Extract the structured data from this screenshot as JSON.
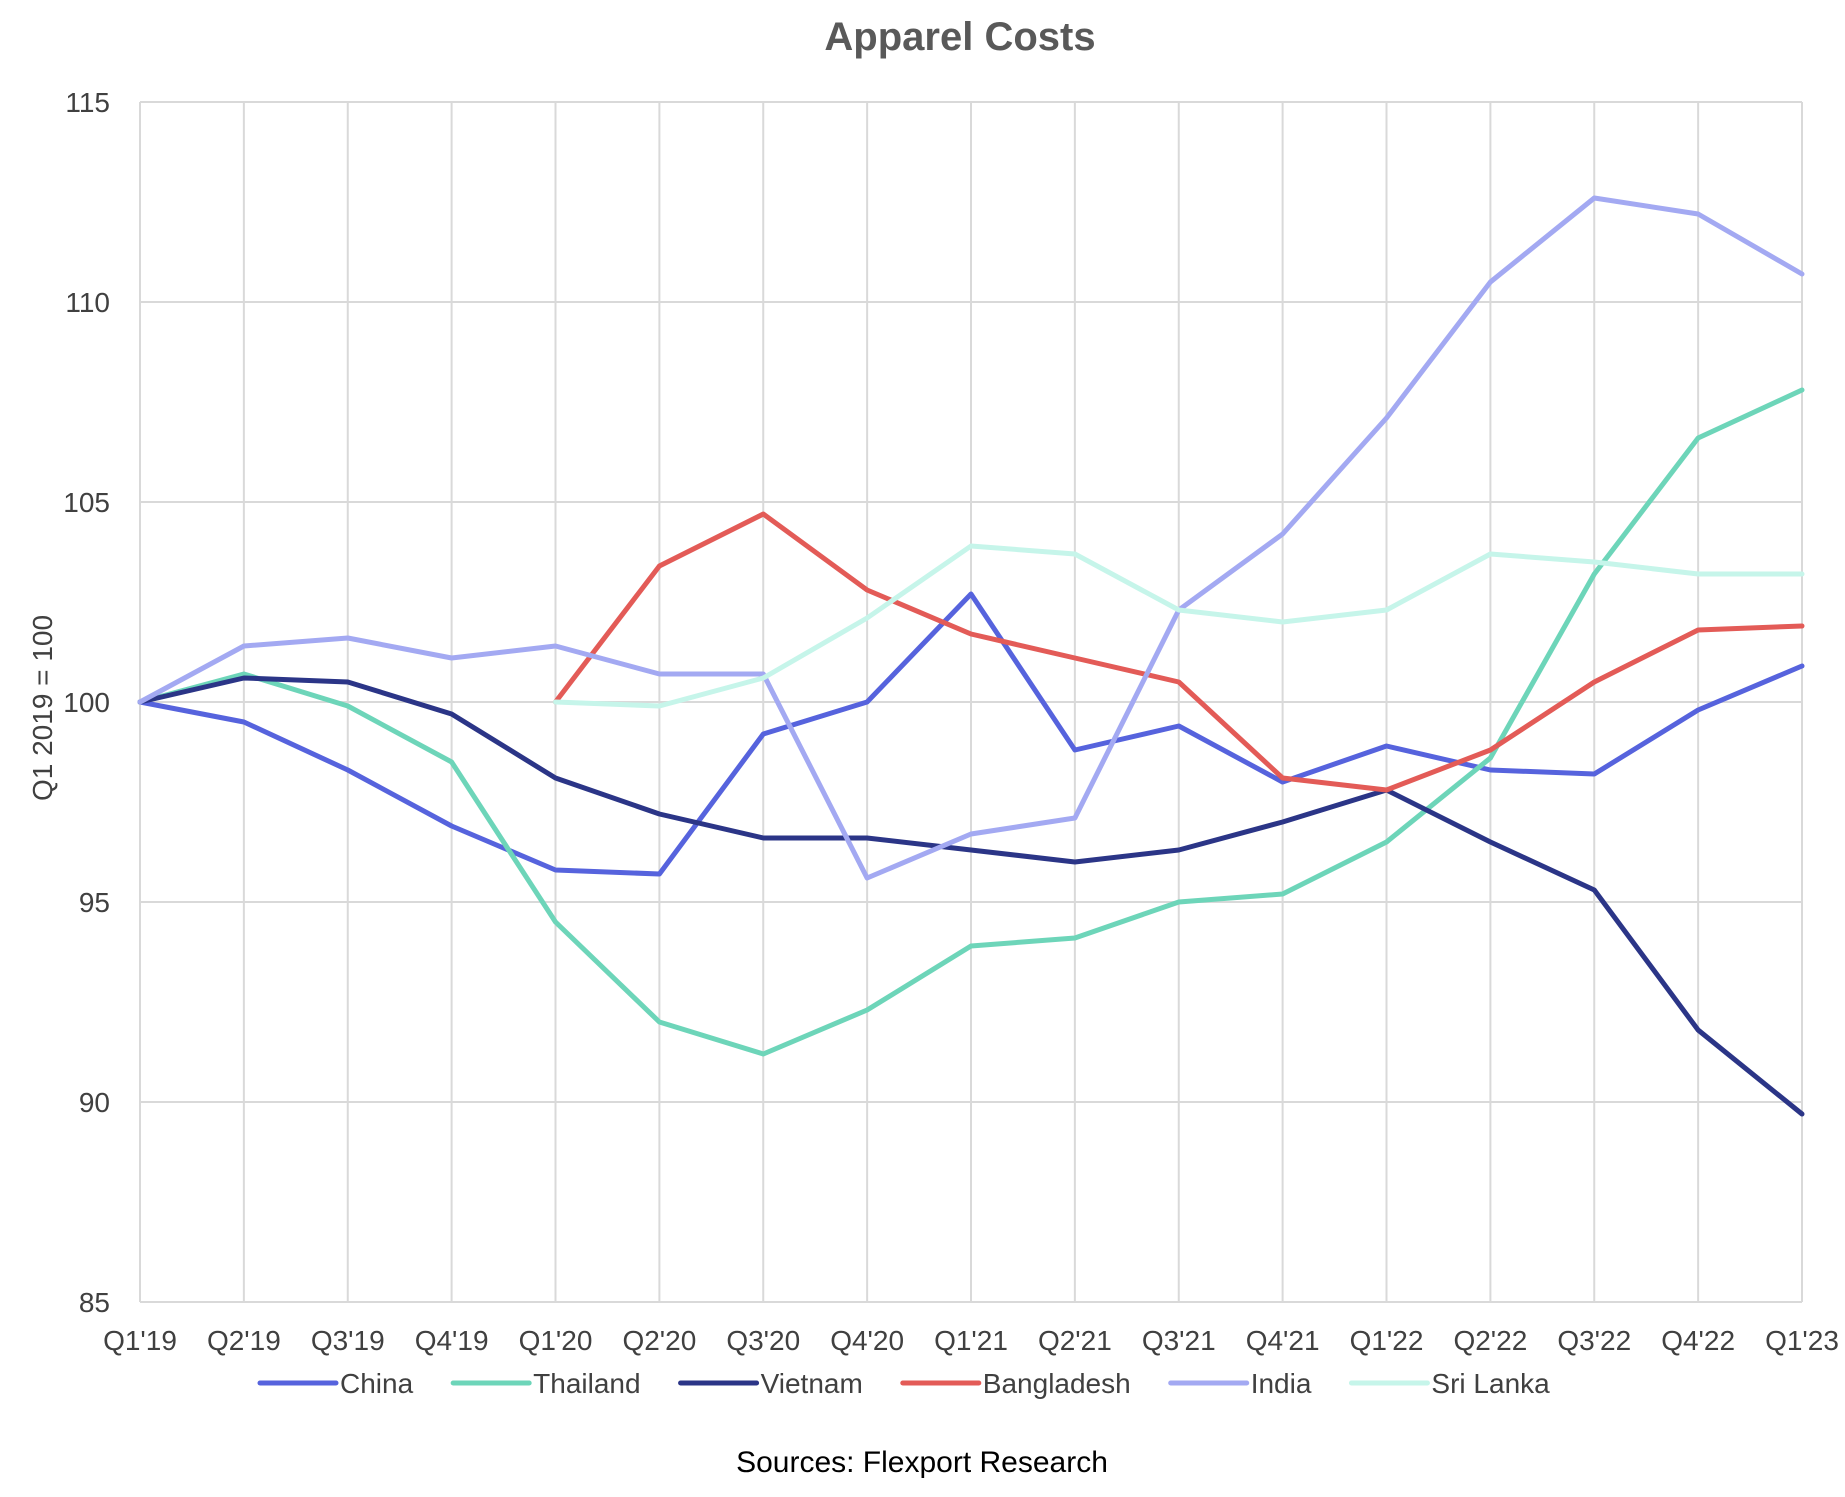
{
  "chart_data": {
    "type": "line",
    "title": "Apparel Costs",
    "ylabel": "Q1 2019 = 100",
    "xlabel": "",
    "ylim": [
      85,
      115
    ],
    "yticks": [
      85,
      90,
      95,
      100,
      105,
      110,
      115
    ],
    "grid": true,
    "legend_position": "bottom",
    "source": "Sources: Flexport Research",
    "categories": [
      "Q1'19",
      "Q2'19",
      "Q3'19",
      "Q4'19",
      "Q1'20",
      "Q2'20",
      "Q3'20",
      "Q4'20",
      "Q1'21",
      "Q2'21",
      "Q3'21",
      "Q4'21",
      "Q1'22",
      "Q2'22",
      "Q3'22",
      "Q4'22",
      "Q1'23"
    ],
    "series": [
      {
        "name": "China",
        "color": "#5663DD",
        "values": [
          100,
          99.5,
          98.3,
          96.9,
          95.8,
          95.7,
          99.2,
          100.0,
          102.7,
          98.8,
          99.4,
          98.0,
          98.9,
          98.3,
          98.2,
          99.8,
          100.9
        ]
      },
      {
        "name": "Thailand",
        "color": "#6DD5B9",
        "values": [
          100,
          100.7,
          99.9,
          98.5,
          94.5,
          92.0,
          91.2,
          92.3,
          93.9,
          94.1,
          95.0,
          95.2,
          96.5,
          98.6,
          103.2,
          106.6,
          107.8
        ]
      },
      {
        "name": "Vietnam",
        "color": "#2B3587",
        "values": [
          100,
          100.6,
          100.5,
          99.7,
          98.1,
          97.2,
          96.6,
          96.6,
          96.3,
          96.0,
          96.3,
          97.0,
          97.8,
          96.5,
          95.3,
          91.8,
          89.7
        ]
      },
      {
        "name": "Bangladesh",
        "color": "#E35B57",
        "values": [
          null,
          null,
          null,
          null,
          100.0,
          103.4,
          104.7,
          102.8,
          101.7,
          101.1,
          100.5,
          98.1,
          97.8,
          98.8,
          100.5,
          101.8,
          101.9
        ]
      },
      {
        "name": "India",
        "color": "#A3A9F2",
        "values": [
          100,
          101.4,
          101.6,
          101.1,
          101.4,
          100.7,
          100.7,
          95.6,
          96.7,
          97.1,
          102.3,
          104.2,
          107.1,
          110.5,
          112.6,
          112.2,
          110.7
        ]
      },
      {
        "name": "Sri Lanka",
        "color": "#C6F5EA",
        "values": [
          null,
          null,
          null,
          null,
          100.0,
          99.9,
          100.6,
          102.1,
          103.9,
          103.7,
          102.3,
          102.0,
          102.3,
          103.7,
          103.5,
          103.2,
          103.2
        ]
      }
    ]
  }
}
